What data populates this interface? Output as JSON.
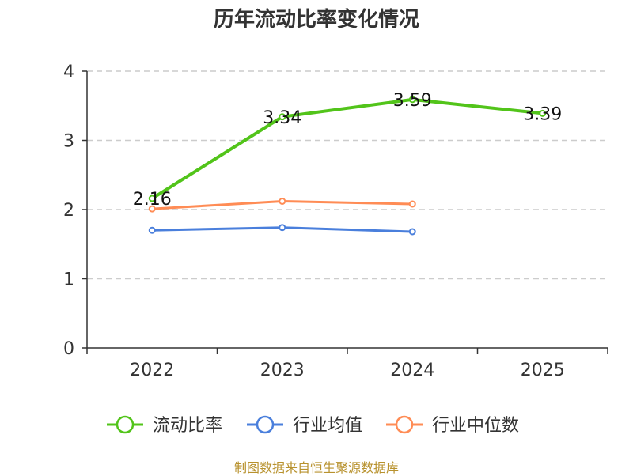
{
  "chart_data": {
    "type": "line",
    "title": "历年流动比率变化情况",
    "categories": [
      "2022",
      "2023",
      "2024",
      "2025"
    ],
    "ylim": [
      0,
      4
    ],
    "yticks": [
      "0",
      "1",
      "2",
      "3",
      "4"
    ],
    "grid": true,
    "legend_position": "bottom",
    "series": [
      {
        "name": "流动比率",
        "color": "#52c41a",
        "values": [
          2.16,
          3.34,
          3.59,
          3.39
        ],
        "labels": [
          "2.16",
          "3.34",
          "3.59",
          "3.39"
        ]
      },
      {
        "name": "行业均值",
        "color": "#4a7fdc",
        "values": [
          1.7,
          1.74,
          1.68,
          null
        ]
      },
      {
        "name": "行业中位数",
        "color": "#ff8c55",
        "values": [
          2.01,
          2.12,
          2.08,
          null
        ]
      }
    ]
  },
  "footer": {
    "source": "制图数据来自恒生聚源数据库"
  }
}
